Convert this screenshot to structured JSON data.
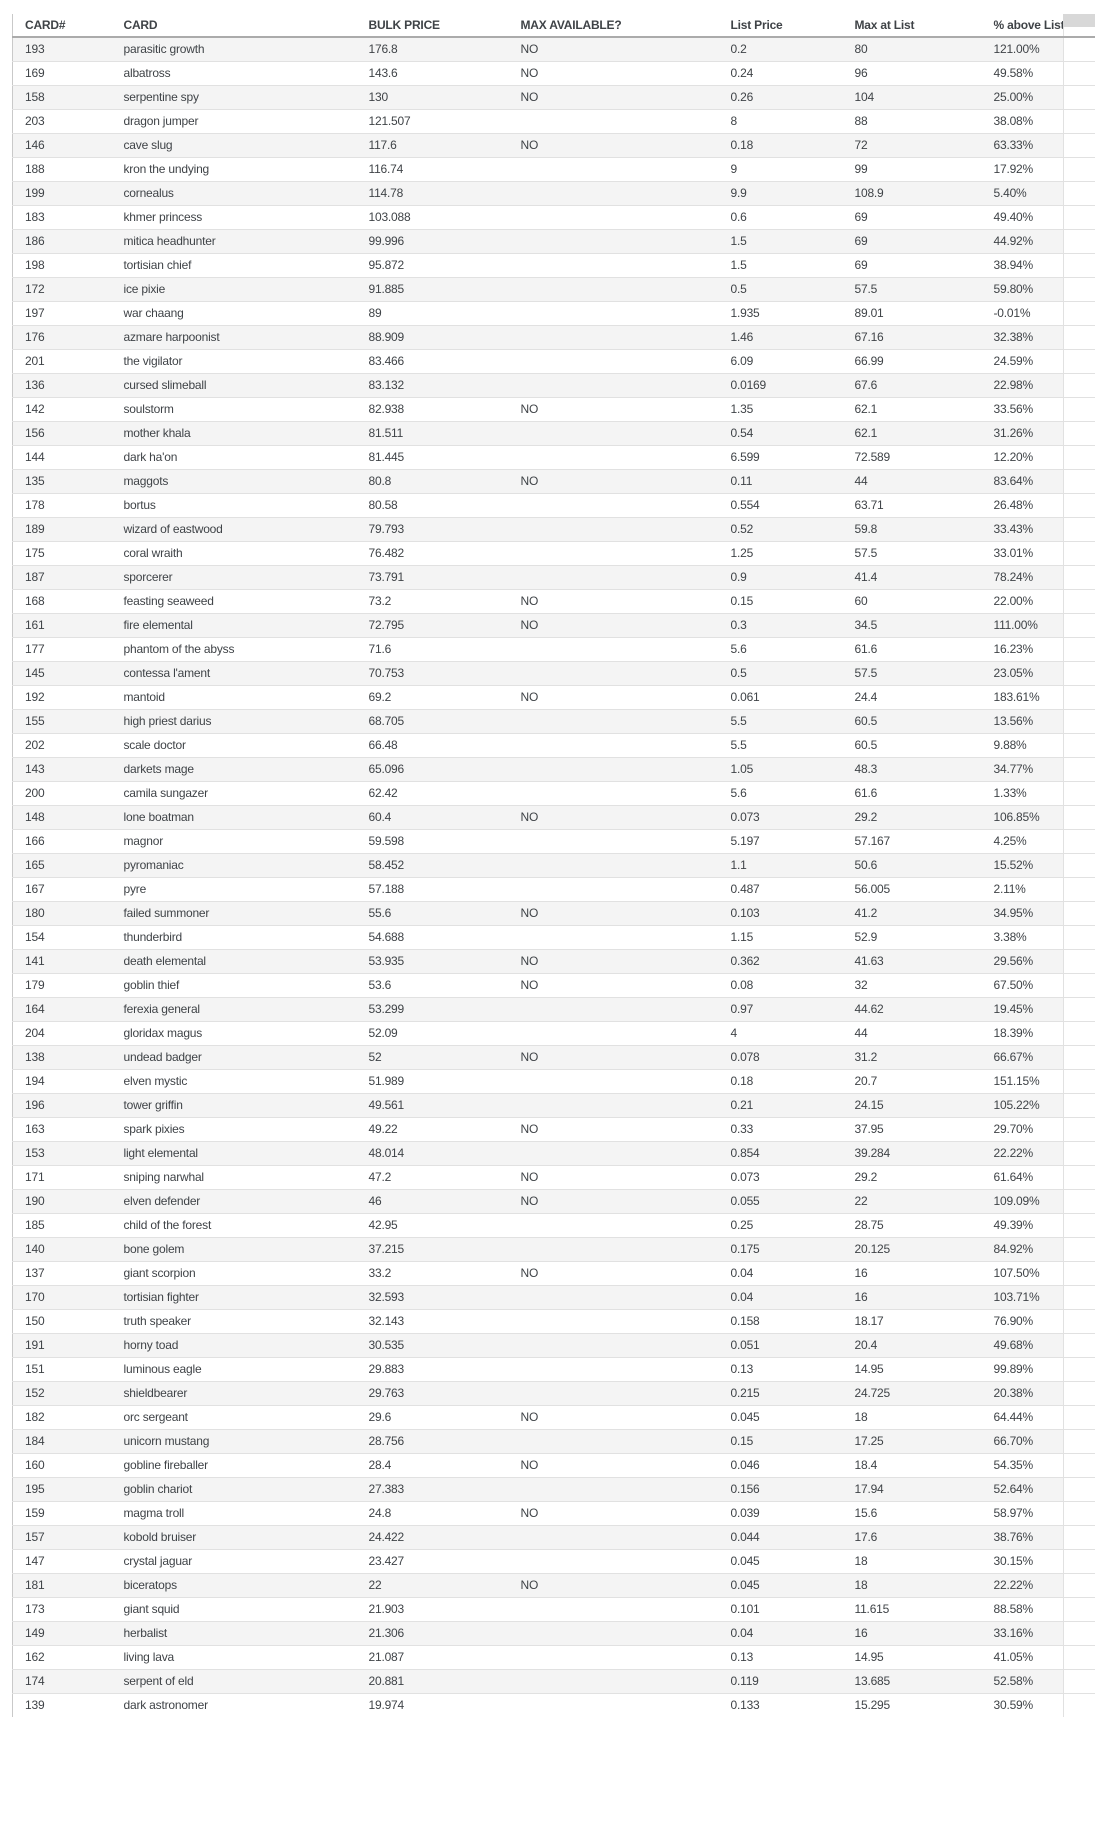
{
  "colors": {
    "stripe_row": "#f4f4f4",
    "row_divider": "#e1e1e1",
    "header_underline": "#ababab",
    "table_left_border": "#c9c9c9",
    "text": "#3f4347",
    "scroll_corner": "#d8d8d8"
  },
  "table": {
    "columns": [
      "CARD#",
      "CARD",
      "BULK PRICE",
      "MAX AVAILABLE?",
      "List Price",
      "Max at List",
      "% above List"
    ],
    "column_keys": [
      "card_number",
      "card",
      "bulk_price",
      "max_available",
      "list_price",
      "max_at_list",
      "pct_above_list"
    ],
    "rows": [
      [
        "193",
        "parasitic growth",
        "176.8",
        "NO",
        "0.2",
        "80",
        "121.00%"
      ],
      [
        "169",
        "albatross",
        "143.6",
        "NO",
        "0.24",
        "96",
        "49.58%"
      ],
      [
        "158",
        "serpentine spy",
        "130",
        "NO",
        "0.26",
        "104",
        "25.00%"
      ],
      [
        "203",
        "dragon jumper",
        "121.507",
        "",
        "8",
        "88",
        "38.08%"
      ],
      [
        "146",
        "cave slug",
        "117.6",
        "NO",
        "0.18",
        "72",
        "63.33%"
      ],
      [
        "188",
        "kron the undying",
        "116.74",
        "",
        "9",
        "99",
        "17.92%"
      ],
      [
        "199",
        "cornealus",
        "114.78",
        "",
        "9.9",
        "108.9",
        "5.40%"
      ],
      [
        "183",
        "khmer princess",
        "103.088",
        "",
        "0.6",
        "69",
        "49.40%"
      ],
      [
        "186",
        "mitica headhunter",
        "99.996",
        "",
        "1.5",
        "69",
        "44.92%"
      ],
      [
        "198",
        "tortisian chief",
        "95.872",
        "",
        "1.5",
        "69",
        "38.94%"
      ],
      [
        "172",
        "ice pixie",
        "91.885",
        "",
        "0.5",
        "57.5",
        "59.80%"
      ],
      [
        "197",
        "war chaang",
        "89",
        "",
        "1.935",
        "89.01",
        "-0.01%"
      ],
      [
        "176",
        "azmare harpoonist",
        "88.909",
        "",
        "1.46",
        "67.16",
        "32.38%"
      ],
      [
        "201",
        "the vigilator",
        "83.466",
        "",
        "6.09",
        "66.99",
        "24.59%"
      ],
      [
        "136",
        "cursed slimeball",
        "83.132",
        "",
        "0.0169",
        "67.6",
        "22.98%"
      ],
      [
        "142",
        "soulstorm",
        "82.938",
        "NO",
        "1.35",
        "62.1",
        "33.56%"
      ],
      [
        "156",
        "mother khala",
        "81.511",
        "",
        "0.54",
        "62.1",
        "31.26%"
      ],
      [
        "144",
        "dark ha'on",
        "81.445",
        "",
        "6.599",
        "72.589",
        "12.20%"
      ],
      [
        "135",
        "maggots",
        "80.8",
        "NO",
        "0.11",
        "44",
        "83.64%"
      ],
      [
        "178",
        "bortus",
        "80.58",
        "",
        "0.554",
        "63.71",
        "26.48%"
      ],
      [
        "189",
        "wizard of eastwood",
        "79.793",
        "",
        "0.52",
        "59.8",
        "33.43%"
      ],
      [
        "175",
        "coral wraith",
        "76.482",
        "",
        "1.25",
        "57.5",
        "33.01%"
      ],
      [
        "187",
        "sporcerer",
        "73.791",
        "",
        "0.9",
        "41.4",
        "78.24%"
      ],
      [
        "168",
        "feasting seaweed",
        "73.2",
        "NO",
        "0.15",
        "60",
        "22.00%"
      ],
      [
        "161",
        "fire elemental",
        "72.795",
        "NO",
        "0.3",
        "34.5",
        "111.00%"
      ],
      [
        "177",
        "phantom of the abyss",
        "71.6",
        "",
        "5.6",
        "61.6",
        "16.23%"
      ],
      [
        "145",
        "contessa l'ament",
        "70.753",
        "",
        "0.5",
        "57.5",
        "23.05%"
      ],
      [
        "192",
        "mantoid",
        "69.2",
        "NO",
        "0.061",
        "24.4",
        "183.61%"
      ],
      [
        "155",
        "high priest darius",
        "68.705",
        "",
        "5.5",
        "60.5",
        "13.56%"
      ],
      [
        "202",
        "scale doctor",
        "66.48",
        "",
        "5.5",
        "60.5",
        "9.88%"
      ],
      [
        "143",
        "darkets mage",
        "65.096",
        "",
        "1.05",
        "48.3",
        "34.77%"
      ],
      [
        "200",
        "camila sungazer",
        "62.42",
        "",
        "5.6",
        "61.6",
        "1.33%"
      ],
      [
        "148",
        "lone boatman",
        "60.4",
        "NO",
        "0.073",
        "29.2",
        "106.85%"
      ],
      [
        "166",
        "magnor",
        "59.598",
        "",
        "5.197",
        "57.167",
        "4.25%"
      ],
      [
        "165",
        "pyromaniac",
        "58.452",
        "",
        "1.1",
        "50.6",
        "15.52%"
      ],
      [
        "167",
        "pyre",
        "57.188",
        "",
        "0.487",
        "56.005",
        "2.11%"
      ],
      [
        "180",
        "failed summoner",
        "55.6",
        "NO",
        "0.103",
        "41.2",
        "34.95%"
      ],
      [
        "154",
        "thunderbird",
        "54.688",
        "",
        "1.15",
        "52.9",
        "3.38%"
      ],
      [
        "141",
        "death elemental",
        "53.935",
        "NO",
        "0.362",
        "41.63",
        "29.56%"
      ],
      [
        "179",
        "goblin thief",
        "53.6",
        "NO",
        "0.08",
        "32",
        "67.50%"
      ],
      [
        "164",
        "ferexia general",
        "53.299",
        "",
        "0.97",
        "44.62",
        "19.45%"
      ],
      [
        "204",
        "gloridax magus",
        "52.09",
        "",
        "4",
        "44",
        "18.39%"
      ],
      [
        "138",
        "undead badger",
        "52",
        "NO",
        "0.078",
        "31.2",
        "66.67%"
      ],
      [
        "194",
        "elven mystic",
        "51.989",
        "",
        "0.18",
        "20.7",
        "151.15%"
      ],
      [
        "196",
        "tower griffin",
        "49.561",
        "",
        "0.21",
        "24.15",
        "105.22%"
      ],
      [
        "163",
        "spark pixies",
        "49.22",
        "NO",
        "0.33",
        "37.95",
        "29.70%"
      ],
      [
        "153",
        "light elemental",
        "48.014",
        "",
        "0.854",
        "39.284",
        "22.22%"
      ],
      [
        "171",
        "sniping narwhal",
        "47.2",
        "NO",
        "0.073",
        "29.2",
        "61.64%"
      ],
      [
        "190",
        "elven defender",
        "46",
        "NO",
        "0.055",
        "22",
        "109.09%"
      ],
      [
        "185",
        "child of the forest",
        "42.95",
        "",
        "0.25",
        "28.75",
        "49.39%"
      ],
      [
        "140",
        "bone golem",
        "37.215",
        "",
        "0.175",
        "20.125",
        "84.92%"
      ],
      [
        "137",
        "giant scorpion",
        "33.2",
        "NO",
        "0.04",
        "16",
        "107.50%"
      ],
      [
        "170",
        "tortisian fighter",
        "32.593",
        "",
        "0.04",
        "16",
        "103.71%"
      ],
      [
        "150",
        "truth speaker",
        "32.143",
        "",
        "0.158",
        "18.17",
        "76.90%"
      ],
      [
        "191",
        "horny toad",
        "30.535",
        "",
        "0.051",
        "20.4",
        "49.68%"
      ],
      [
        "151",
        "luminous eagle",
        "29.883",
        "",
        "0.13",
        "14.95",
        "99.89%"
      ],
      [
        "152",
        "shieldbearer",
        "29.763",
        "",
        "0.215",
        "24.725",
        "20.38%"
      ],
      [
        "182",
        "orc sergeant",
        "29.6",
        "NO",
        "0.045",
        "18",
        "64.44%"
      ],
      [
        "184",
        "unicorn mustang",
        "28.756",
        "",
        "0.15",
        "17.25",
        "66.70%"
      ],
      [
        "160",
        "gobline fireballer",
        "28.4",
        "NO",
        "0.046",
        "18.4",
        "54.35%"
      ],
      [
        "195",
        "goblin chariot",
        "27.383",
        "",
        "0.156",
        "17.94",
        "52.64%"
      ],
      [
        "159",
        "magma troll",
        "24.8",
        "NO",
        "0.039",
        "15.6",
        "58.97%"
      ],
      [
        "157",
        "kobold bruiser",
        "24.422",
        "",
        "0.044",
        "17.6",
        "38.76%"
      ],
      [
        "147",
        "crystal jaguar",
        "23.427",
        "",
        "0.045",
        "18",
        "30.15%"
      ],
      [
        "181",
        "biceratops",
        "22",
        "NO",
        "0.045",
        "18",
        "22.22%"
      ],
      [
        "173",
        "giant squid",
        "21.903",
        "",
        "0.101",
        "11.615",
        "88.58%"
      ],
      [
        "149",
        "herbalist",
        "21.306",
        "",
        "0.04",
        "16",
        "33.16%"
      ],
      [
        "162",
        "living lava",
        "21.087",
        "",
        "0.13",
        "14.95",
        "41.05%"
      ],
      [
        "174",
        "serpent of eld",
        "20.881",
        "",
        "0.119",
        "13.685",
        "52.58%"
      ],
      [
        "139",
        "dark astronomer",
        "19.974",
        "",
        "0.133",
        "15.295",
        "30.59%"
      ]
    ]
  }
}
